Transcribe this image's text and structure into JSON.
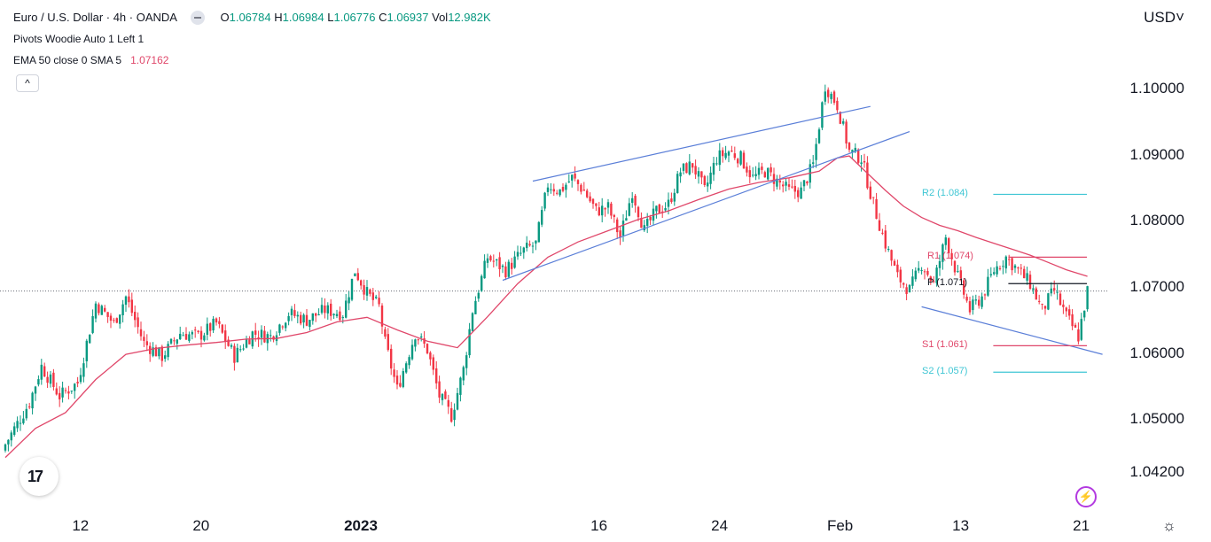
{
  "header": {
    "symbol": "Euro / U.S. Dollar · 4h · OANDA",
    "open": "1.06784",
    "high": "1.06984",
    "low": "1.06776",
    "close": "1.06937",
    "volume": "12.982K",
    "pivots_label": "Pivots Woodie Auto 1 Left 1",
    "ema_label": "EMA 50 close 0 SMA 5",
    "ema_value": "1.07162"
  },
  "currency": "USD",
  "collapse_glyph": "^",
  "logo_text": "17",
  "flash_glyph": "⚡",
  "settings_glyph": "☼",
  "colors": {
    "up": "#089981",
    "down": "#f23645",
    "ema": "#e0476a",
    "trend": "#5b7fd8",
    "pivot": "#131722",
    "resistance1": "#e0476a",
    "support1": "#e0476a",
    "r2s2": "#3fc6d4"
  },
  "chart_data": {
    "type": "candlestick",
    "title": "Euro / U.S. Dollar · 4h · OANDA",
    "ylabel": "USD",
    "ylim": [
      1.0402,
      1.1045
    ],
    "y_ticks": [
      {
        "value": 1.1,
        "label": "1.10000"
      },
      {
        "value": 1.09,
        "label": "1.09000"
      },
      {
        "value": 1.08,
        "label": "1.08000"
      },
      {
        "value": 1.07,
        "label": "1.07000"
      },
      {
        "value": 1.06,
        "label": "1.06000"
      },
      {
        "value": 1.05,
        "label": "1.05000"
      },
      {
        "value": 1.042,
        "label": "1.04200"
      }
    ],
    "x_ticks": [
      {
        "bar": 22,
        "label": "12",
        "bold": false
      },
      {
        "bar": 62,
        "label": "20",
        "bold": false
      },
      {
        "bar": 115,
        "label": "2023",
        "bold": true
      },
      {
        "bar": 194,
        "label": "16",
        "bold": false
      },
      {
        "bar": 234,
        "label": "24",
        "bold": false
      },
      {
        "bar": 274,
        "label": "Feb",
        "bold": false
      },
      {
        "bar": 314,
        "label": "13",
        "bold": false
      },
      {
        "bar": 354,
        "label": "21",
        "bold": false
      }
    ],
    "current_price": 1.06937,
    "anchors": [
      [
        0,
        1.0462
      ],
      [
        8,
        1.0525
      ],
      [
        12,
        1.058
      ],
      [
        18,
        1.0535
      ],
      [
        24,
        1.0555
      ],
      [
        30,
        1.0675
      ],
      [
        36,
        1.0645
      ],
      [
        40,
        1.0685
      ],
      [
        46,
        1.0615
      ],
      [
        52,
        1.0595
      ],
      [
        58,
        1.063
      ],
      [
        64,
        1.0625
      ],
      [
        70,
        1.0645
      ],
      [
        76,
        1.0595
      ],
      [
        82,
        1.063
      ],
      [
        88,
        1.0625
      ],
      [
        94,
        1.066
      ],
      [
        100,
        1.065
      ],
      [
        106,
        1.0665
      ],
      [
        112,
        1.066
      ],
      [
        116,
        1.0725
      ],
      [
        120,
        1.069
      ],
      [
        124,
        1.067
      ],
      [
        126,
        1.0615
      ],
      [
        130,
        1.0545
      ],
      [
        136,
        1.063
      ],
      [
        140,
        1.0605
      ],
      [
        144,
        1.0535
      ],
      [
        148,
        1.0505
      ],
      [
        152,
        1.0575
      ],
      [
        155,
        1.0665
      ],
      [
        160,
        1.0745
      ],
      [
        166,
        1.0725
      ],
      [
        172,
        1.0755
      ],
      [
        176,
        1.0765
      ],
      [
        180,
        1.0855
      ],
      [
        184,
        1.0845
      ],
      [
        188,
        1.0865
      ],
      [
        192,
        1.0845
      ],
      [
        196,
        1.0815
      ],
      [
        200,
        1.082
      ],
      [
        204,
        1.0775
      ],
      [
        208,
        1.0845
      ],
      [
        212,
        1.0785
      ],
      [
        216,
        1.0815
      ],
      [
        220,
        1.0825
      ],
      [
        224,
        1.0875
      ],
      [
        228,
        1.0885
      ],
      [
        232,
        1.0845
      ],
      [
        236,
        1.0895
      ],
      [
        240,
        1.0905
      ],
      [
        244,
        1.0895
      ],
      [
        248,
        1.0865
      ],
      [
        252,
        1.0875
      ],
      [
        256,
        1.086
      ],
      [
        260,
        1.0845
      ],
      [
        264,
        1.0845
      ],
      [
        268,
        1.0885
      ],
      [
        272,
        1.1005
      ],
      [
        276,
        1.0975
      ],
      [
        280,
        1.0905
      ],
      [
        284,
        1.0895
      ],
      [
        288,
        1.0825
      ],
      [
        292,
        1.0765
      ],
      [
        296,
        1.0715
      ],
      [
        300,
        1.0695
      ],
      [
        304,
        1.0735
      ],
      [
        308,
        1.0705
      ],
      [
        312,
        1.0775
      ],
      [
        316,
        1.0715
      ],
      [
        320,
        1.0665
      ],
      [
        324,
        1.0685
      ],
      [
        328,
        1.0725
      ],
      [
        332,
        1.0745
      ],
      [
        336,
        1.0725
      ],
      [
        340,
        1.0705
      ],
      [
        344,
        1.0665
      ],
      [
        348,
        1.0695
      ],
      [
        352,
        1.0655
      ],
      [
        356,
        1.0625
      ],
      [
        359,
        1.0694
      ]
    ],
    "ema": [
      [
        0,
        1.0442
      ],
      [
        10,
        1.0486
      ],
      [
        20,
        1.051
      ],
      [
        30,
        1.056
      ],
      [
        40,
        1.0598
      ],
      [
        50,
        1.0607
      ],
      [
        60,
        1.0612
      ],
      [
        70,
        1.0616
      ],
      [
        80,
        1.0621
      ],
      [
        90,
        1.0622
      ],
      [
        100,
        1.0631
      ],
      [
        110,
        1.0647
      ],
      [
        120,
        1.0654
      ],
      [
        130,
        1.0635
      ],
      [
        140,
        1.0618
      ],
      [
        150,
        1.0608
      ],
      [
        160,
        1.0655
      ],
      [
        170,
        1.0705
      ],
      [
        180,
        1.0745
      ],
      [
        190,
        1.0768
      ],
      [
        200,
        1.0785
      ],
      [
        210,
        1.0802
      ],
      [
        220,
        1.0815
      ],
      [
        230,
        1.0832
      ],
      [
        240,
        1.0848
      ],
      [
        250,
        1.0858
      ],
      [
        260,
        1.0865
      ],
      [
        270,
        1.0875
      ],
      [
        276,
        1.0895
      ],
      [
        280,
        1.0898
      ],
      [
        286,
        1.0872
      ],
      [
        292,
        1.0846
      ],
      [
        298,
        1.0822
      ],
      [
        304,
        1.0805
      ],
      [
        310,
        1.0793
      ],
      [
        316,
        1.0785
      ],
      [
        322,
        1.0775
      ],
      [
        328,
        1.0766
      ],
      [
        334,
        1.0757
      ],
      [
        340,
        1.0748
      ],
      [
        346,
        1.0737
      ],
      [
        352,
        1.0726
      ],
      [
        359,
        1.0716
      ]
    ],
    "trendlines": [
      {
        "from": [
          175,
          1.086
        ],
        "to": [
          287,
          1.0973
        ]
      },
      {
        "from": [
          165,
          1.071
        ],
        "to": [
          300,
          1.0935
        ]
      },
      {
        "from": [
          304,
          1.067
        ],
        "to": [
          364,
          1.0598
        ]
      }
    ],
    "pivots": [
      {
        "key": "r2",
        "label": "R2 (1.084)",
        "value": 1.084,
        "start": 316,
        "end": 360
      },
      {
        "key": "r1",
        "label": "R1 (1.074)",
        "value": 1.0745,
        "start": 321,
        "end": 360
      },
      {
        "key": "p",
        "label": "P (1.071)",
        "value": 1.0705,
        "start": 321,
        "end": 360
      },
      {
        "key": "s1",
        "label": "S1 (1.061)",
        "value": 1.0611,
        "start": 316,
        "end": 360
      },
      {
        "key": "s2",
        "label": "S2 (1.057)",
        "value": 1.0571,
        "start": 316,
        "end": 360
      }
    ]
  }
}
